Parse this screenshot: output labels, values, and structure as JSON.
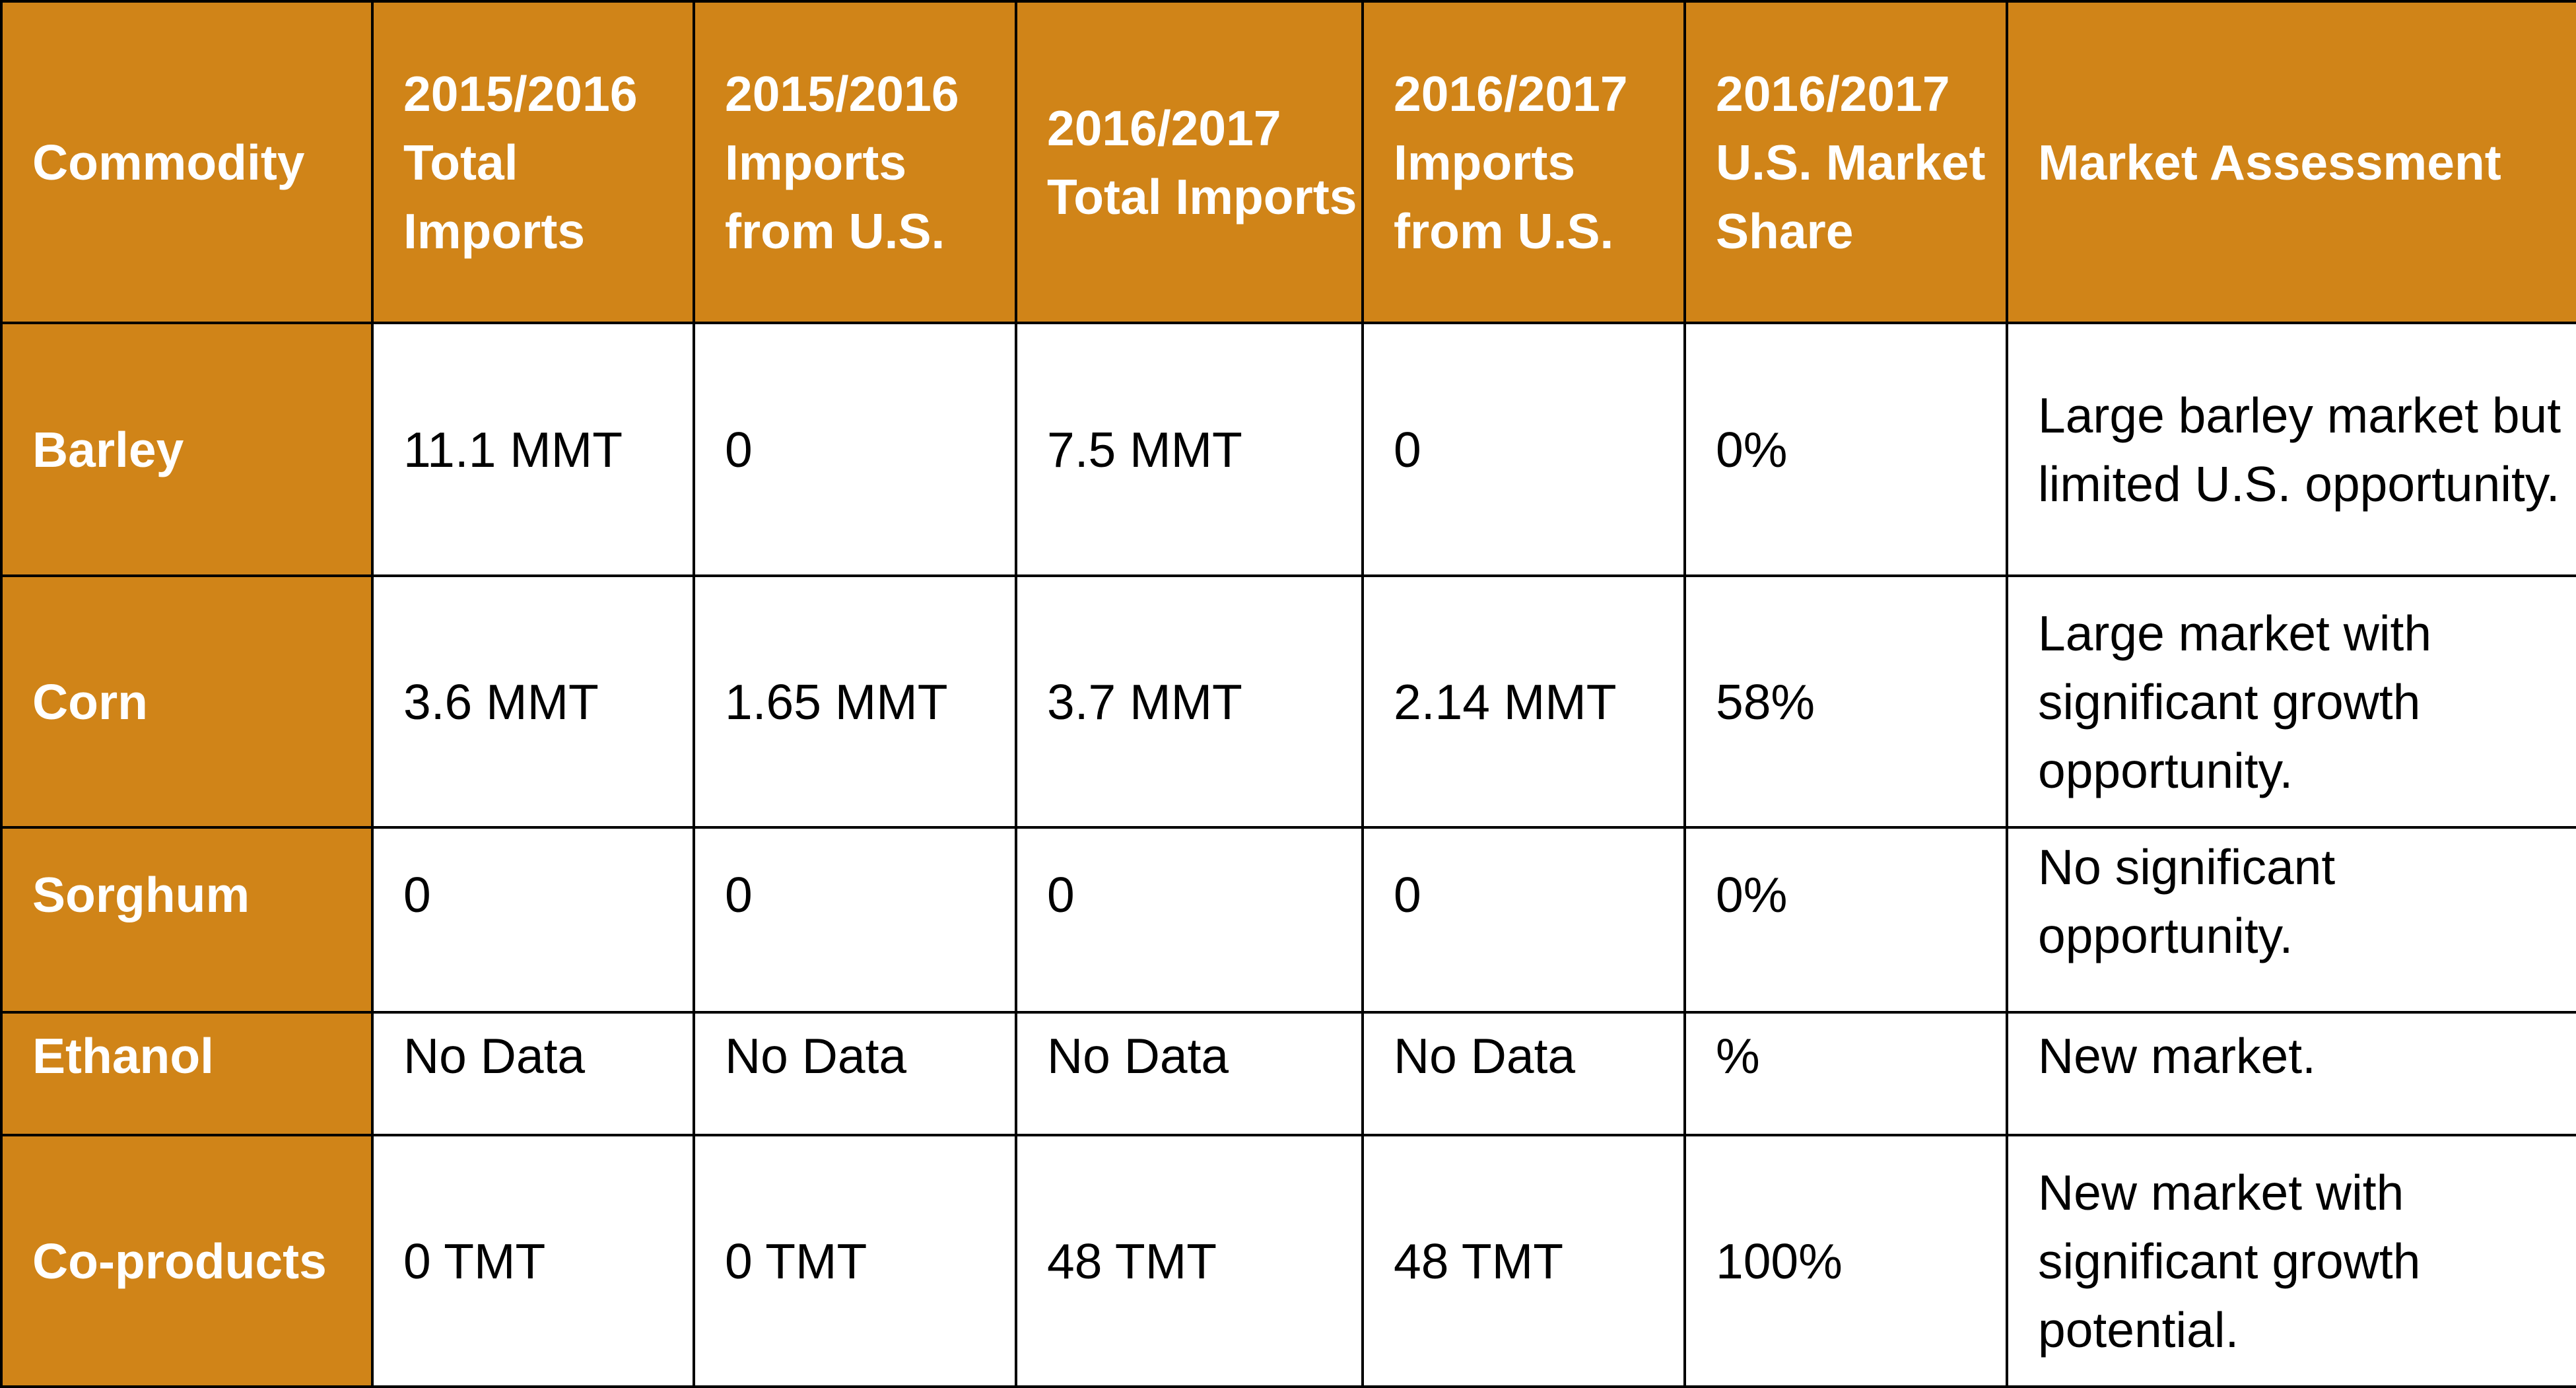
{
  "table": {
    "headers": [
      "Commodity",
      "2015/2016 Total Imports",
      "2015/2016 Imports from U.S.",
      "2016/2017 Total Imports",
      "2016/2017 Imports from U.S.",
      "2016/2017 U.S. Market Share",
      "Market Assessment"
    ],
    "rows": [
      {
        "commodity": "Barley",
        "total_2015_2016": "11.1 MMT",
        "us_2015_2016": "0",
        "total_2016_2017": "7.5 MMT",
        "us_2016_2017": "0",
        "share_2016_2017": "0%",
        "assessment": "Large barley market but limited U.S. opportunity."
      },
      {
        "commodity": "Corn",
        "total_2015_2016": "3.6 MMT",
        "us_2015_2016": "1.65 MMT",
        "total_2016_2017": "3.7 MMT",
        "us_2016_2017": "2.14 MMT",
        "share_2016_2017": "58%",
        "assessment": "Large market with significant growth opportunity."
      },
      {
        "commodity": "Sorghum",
        "total_2015_2016": "0",
        "us_2015_2016": "0",
        "total_2016_2017": "0",
        "us_2016_2017": "0",
        "share_2016_2017": "0%",
        "assessment": "No significant opportunity."
      },
      {
        "commodity": "Ethanol",
        "total_2015_2016": "No Data",
        "us_2015_2016": "No Data",
        "total_2016_2017": "No Data",
        "us_2016_2017": "No Data",
        "share_2016_2017": "%",
        "assessment": "New market."
      },
      {
        "commodity": "Co-products",
        "total_2015_2016": "0 TMT",
        "us_2015_2016": "0 TMT",
        "total_2016_2017": "48 TMT",
        "us_2016_2017": "48 TMT",
        "share_2016_2017": "100%",
        "assessment": "New market with significant growth potential."
      }
    ]
  },
  "colors": {
    "header_bg": "#d08418",
    "header_text": "#ffffff",
    "cell_bg": "#ffffff",
    "grid": "#000000"
  }
}
